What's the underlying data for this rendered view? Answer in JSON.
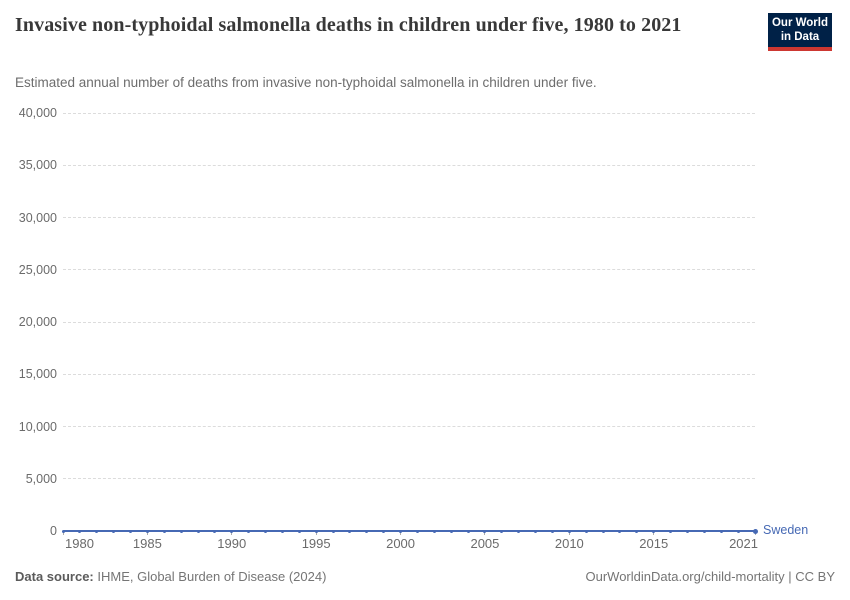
{
  "header": {
    "title": "Invasive non-typhoidal salmonella deaths in children under five, 1980 to 2021",
    "subtitle": "Estimated annual number of deaths from invasive non-typhoidal salmonella in children under five.",
    "logo": {
      "line1": "Our World",
      "line2": "in Data"
    }
  },
  "chart_data": {
    "type": "line",
    "title": "Invasive non-typhoidal salmonella deaths in children under five, 1980 to 2021",
    "x": [
      1980,
      1981,
      1982,
      1983,
      1984,
      1985,
      1986,
      1987,
      1988,
      1989,
      1990,
      1991,
      1992,
      1993,
      1994,
      1995,
      1996,
      1997,
      1998,
      1999,
      2000,
      2001,
      2002,
      2003,
      2004,
      2005,
      2006,
      2007,
      2008,
      2009,
      2010,
      2011,
      2012,
      2013,
      2014,
      2015,
      2016,
      2017,
      2018,
      2019,
      2020,
      2021
    ],
    "series": [
      {
        "name": "Sweden",
        "color": "#4669b4",
        "values": [
          0,
          0,
          0,
          0,
          0,
          0,
          0,
          0,
          0,
          0,
          0,
          0,
          0,
          0,
          0,
          0,
          0,
          0,
          0,
          0,
          0,
          0,
          0,
          0,
          0,
          0,
          0,
          0,
          0,
          0,
          0,
          0,
          0,
          0,
          0,
          0,
          0,
          0,
          0,
          0,
          0,
          0
        ]
      }
    ],
    "xlim": [
      1980,
      2021
    ],
    "ylim": [
      0,
      40000
    ],
    "xlabel": "",
    "ylabel": "",
    "grid": "horizontal-dashed",
    "legend_position": "end-of-line-label",
    "yticks": [
      {
        "value": 0,
        "label": "0"
      },
      {
        "value": 5000,
        "label": "5,000"
      },
      {
        "value": 10000,
        "label": "10,000"
      },
      {
        "value": 15000,
        "label": "15,000"
      },
      {
        "value": 20000,
        "label": "20,000"
      },
      {
        "value": 25000,
        "label": "25,000"
      },
      {
        "value": 30000,
        "label": "30,000"
      },
      {
        "value": 35000,
        "label": "35,000"
      },
      {
        "value": 40000,
        "label": "40,000"
      }
    ],
    "xticks": [
      {
        "value": 1980,
        "label": "1980"
      },
      {
        "value": 1985,
        "label": "1985"
      },
      {
        "value": 1990,
        "label": "1990"
      },
      {
        "value": 1995,
        "label": "1995"
      },
      {
        "value": 2000,
        "label": "2000"
      },
      {
        "value": 2005,
        "label": "2005"
      },
      {
        "value": 2010,
        "label": "2010"
      },
      {
        "value": 2015,
        "label": "2015"
      },
      {
        "value": 2021,
        "label": "2021"
      }
    ]
  },
  "footer": {
    "source_label": "Data source:",
    "source_value": "IHME, Global Burden of Disease (2024)",
    "credit": "OurWorldinData.org/child-mortality | CC BY"
  },
  "colors": {
    "line": "#4669b4",
    "title_text": "#383838",
    "axis_text": "#6b6b6b",
    "gridline": "#dcdcdc",
    "logo_bg": "#002147",
    "logo_stripe": "#cd3731"
  }
}
